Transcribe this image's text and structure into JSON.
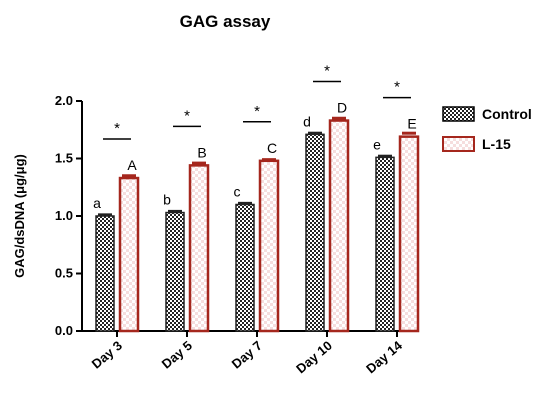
{
  "chart_data": {
    "type": "bar",
    "title": "GAG assay",
    "ylabel": "GAG/dsDNA (μg/μg)",
    "xlabel": "",
    "categories": [
      "Day 3",
      "Day 5",
      "Day 7",
      "Day 10",
      "Day 14"
    ],
    "ylim": [
      0,
      2.0
    ],
    "yticks": [
      "0.0",
      "0.5",
      "1.0",
      "1.5",
      "2.0"
    ],
    "series": [
      {
        "name": "Control",
        "values": [
          1.0,
          1.03,
          1.1,
          1.71,
          1.51
        ],
        "errors": [
          0.01,
          0.01,
          0.01,
          0.01,
          0.01
        ],
        "letters": [
          "a",
          "b",
          "c",
          "d",
          "e"
        ],
        "pattern": "checker",
        "color": "#222222"
      },
      {
        "name": "L-15",
        "values": [
          1.33,
          1.44,
          1.48,
          1.83,
          1.69
        ],
        "errors": [
          0.02,
          0.02,
          0.01,
          0.02,
          0.03
        ],
        "letters": [
          "A",
          "B",
          "C",
          "D",
          "E"
        ],
        "pattern": "checker",
        "color": "#a5271d"
      }
    ],
    "significance": [
      "*",
      "*",
      "*",
      "*",
      "*"
    ],
    "legend_position": "top-right"
  }
}
